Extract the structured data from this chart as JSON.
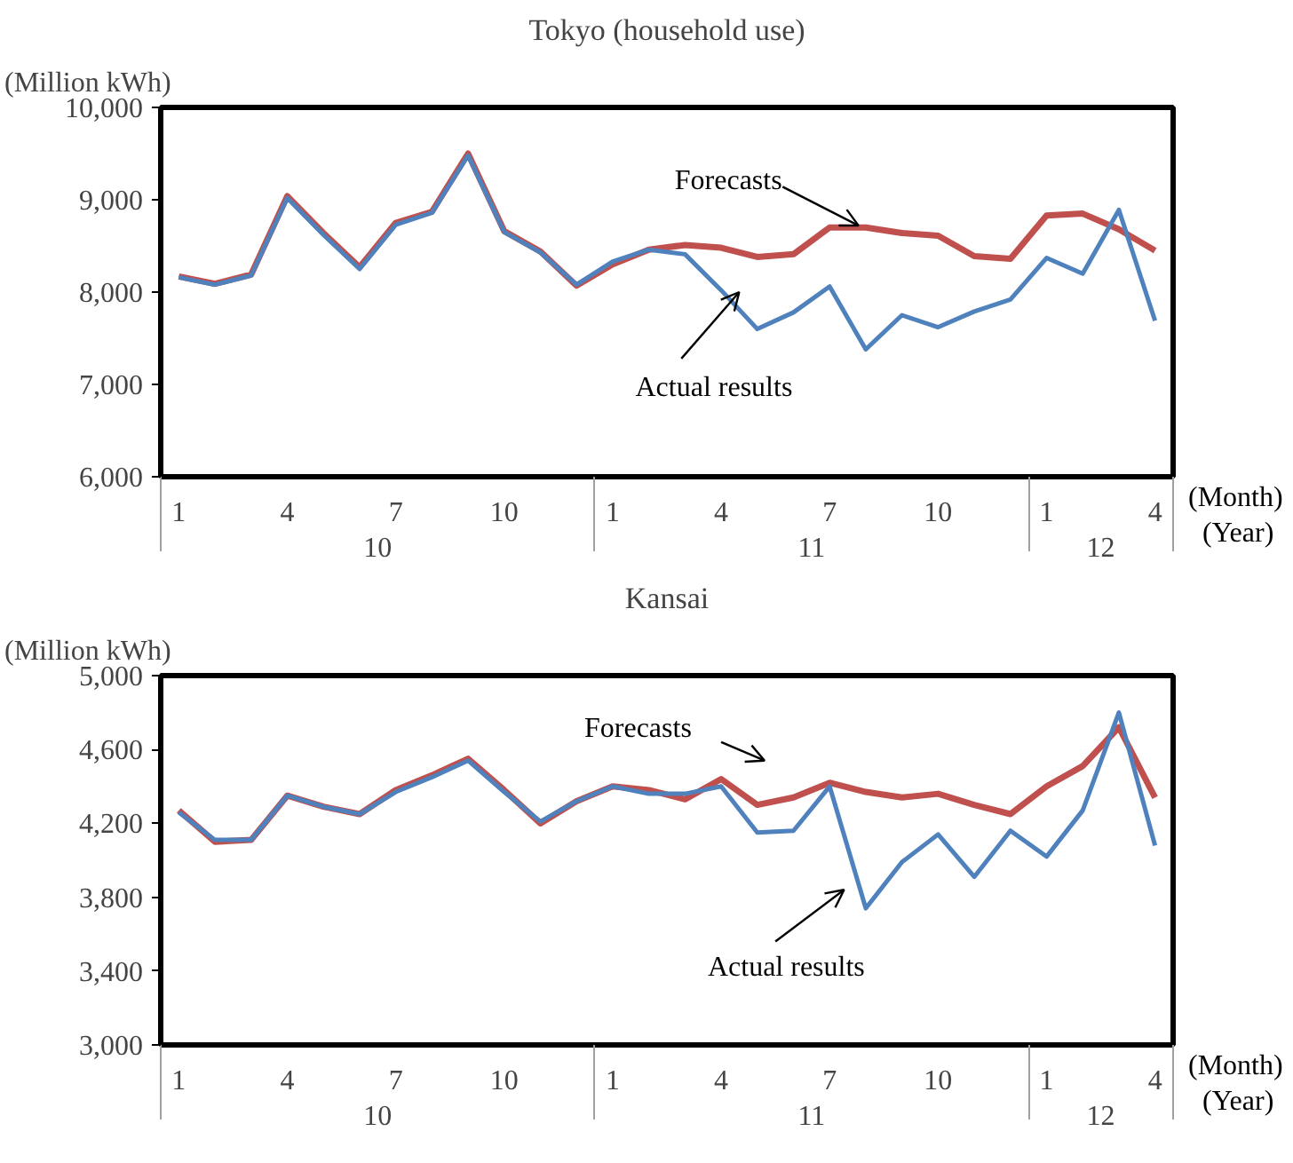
{
  "chart_data": [
    {
      "type": "line",
      "title": "Tokyo (household use)",
      "ylabel": "(Million  kWh)",
      "xlabel": "(Month)",
      "annotations": [
        "10",
        "11",
        "12",
        "(Year)"
      ],
      "categories": [
        "1",
        null,
        null,
        "4",
        null,
        null,
        "7",
        null,
        null,
        "10",
        null,
        null,
        "1",
        null,
        null,
        "4",
        null,
        null,
        "7",
        null,
        null,
        "10",
        null,
        null,
        "1",
        null,
        null,
        "4"
      ],
      "ylim": [
        6000,
        10000
      ],
      "yticks": [
        {
          "value": 6000,
          "label": "6,000"
        },
        {
          "value": 7000,
          "label": "7,000"
        },
        {
          "value": 8000,
          "label": "8,000"
        },
        {
          "value": 9000,
          "label": "9,000"
        },
        {
          "value": 10000,
          "label": "10,000"
        }
      ],
      "series": [
        {
          "name": "Forecasts",
          "color": "#c0504d",
          "values": [
            8170,
            8090,
            8190,
            9040,
            8640,
            8270,
            8750,
            8870,
            9500,
            8660,
            8440,
            8070,
            8300,
            8460,
            8510,
            8480,
            8380,
            8410,
            8700,
            8700,
            8640,
            8610,
            8390,
            8360,
            8830,
            8850,
            8680,
            8450
          ]
        },
        {
          "name": "Actual results",
          "color": "#4f81bd",
          "values": [
            8160,
            8080,
            8180,
            9020,
            8620,
            8250,
            8730,
            8860,
            9480,
            8650,
            8430,
            8080,
            8330,
            8460,
            8410,
            8020,
            7600,
            7780,
            8060,
            7380,
            7750,
            7620,
            7790,
            7920,
            8370,
            8200,
            8890,
            7690
          ]
        }
      ],
      "grid": false,
      "legend": false
    },
    {
      "type": "line",
      "title": "Kansai",
      "ylabel": "(Million  kWh)",
      "xlabel": "(Month)",
      "annotations": [
        "10",
        "11",
        "12",
        "(Year)"
      ],
      "categories": [
        "1",
        null,
        null,
        "4",
        null,
        null,
        "7",
        null,
        null,
        "10",
        null,
        null,
        "1",
        null,
        null,
        "4",
        null,
        null,
        "7",
        null,
        null,
        "10",
        null,
        null,
        "1",
        null,
        null,
        "4"
      ],
      "ylim": [
        3000,
        5000
      ],
      "yticks": [
        {
          "value": 3000,
          "label": "3,000"
        },
        {
          "value": 3400,
          "label": "3,400"
        },
        {
          "value": 3800,
          "label": "3,800"
        },
        {
          "value": 4200,
          "label": "4,200"
        },
        {
          "value": 4600,
          "label": "4,600"
        },
        {
          "value": 5000,
          "label": "5,000"
        }
      ],
      "series": [
        {
          "name": "Forecasts",
          "color": "#c0504d",
          "values": [
            4270,
            4100,
            4110,
            4350,
            4290,
            4250,
            4380,
            4460,
            4550,
            4380,
            4200,
            4320,
            4400,
            4380,
            4330,
            4440,
            4300,
            4340,
            4420,
            4370,
            4340,
            4360,
            4300,
            4250,
            4400,
            4510,
            4720,
            4340
          ]
        },
        {
          "name": "Actual results",
          "color": "#4f81bd",
          "values": [
            4260,
            4110,
            4110,
            4350,
            4290,
            4250,
            4370,
            4450,
            4540,
            4370,
            4210,
            4320,
            4400,
            4360,
            4360,
            4400,
            4150,
            4160,
            4400,
            3740,
            3990,
            4140,
            3910,
            4160,
            4020,
            4270,
            4800,
            4080
          ]
        }
      ],
      "grid": false,
      "legend": false
    }
  ]
}
